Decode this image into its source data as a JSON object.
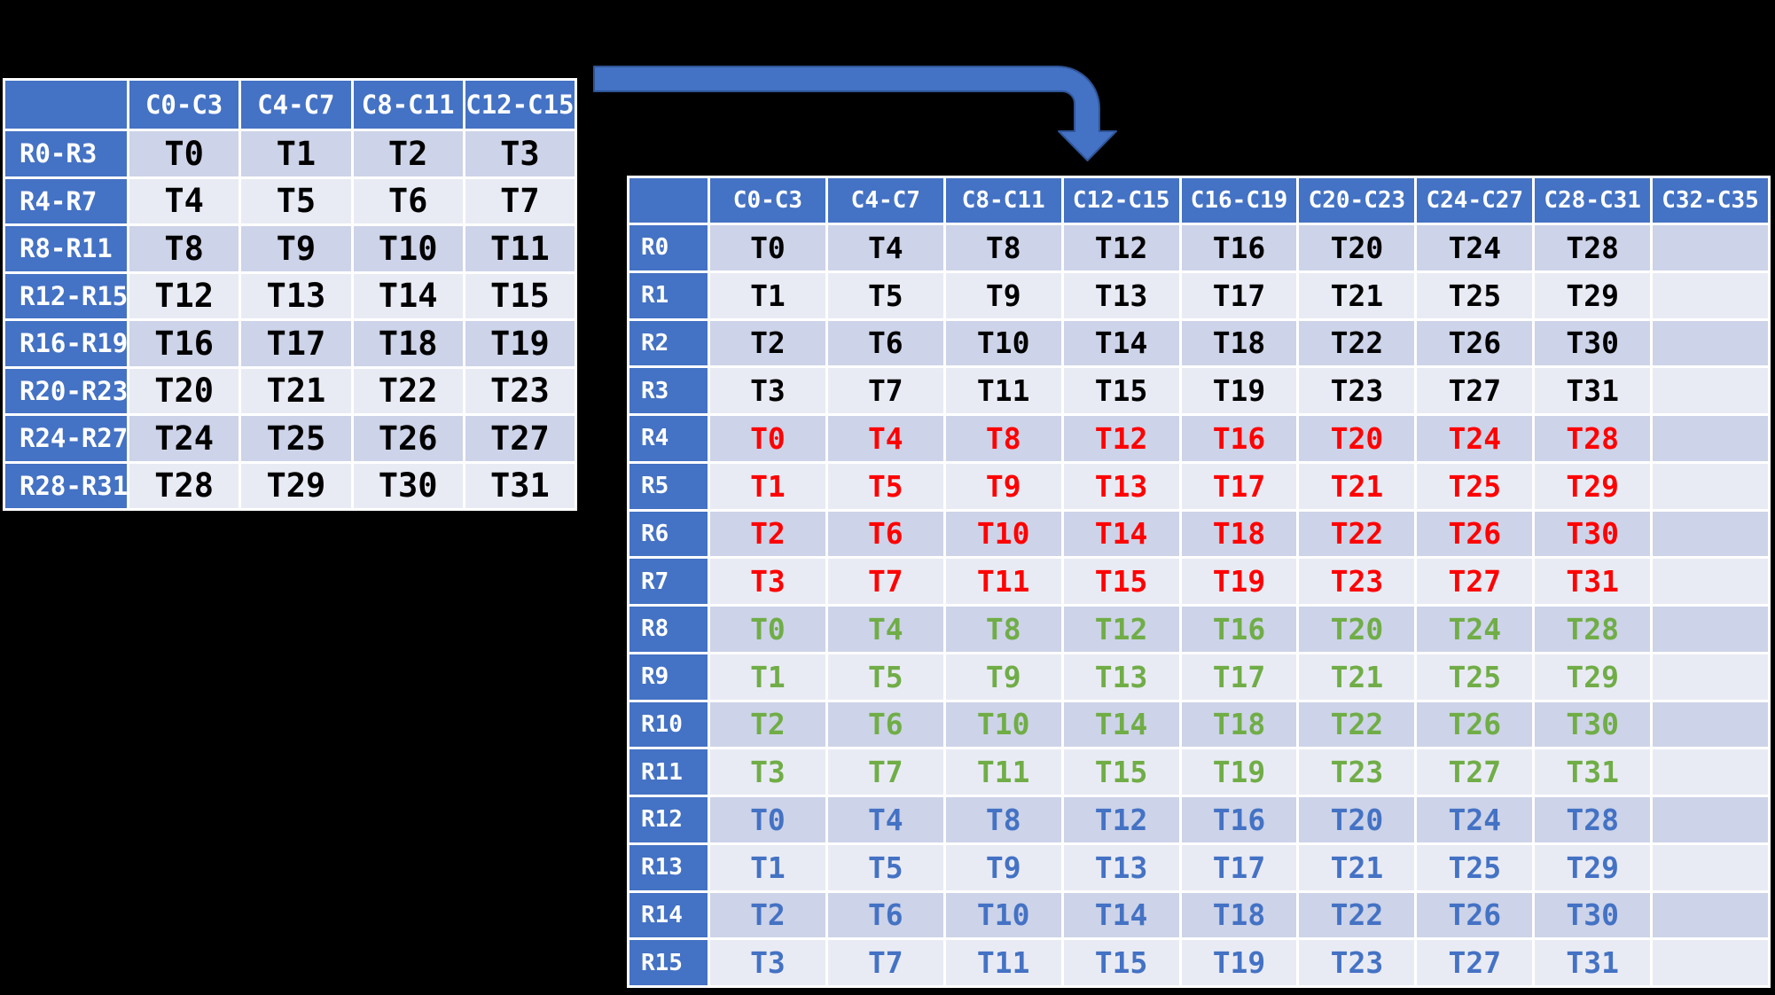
{
  "colors": {
    "header_bg": "#4472c4",
    "header_text": "#ffffff",
    "band_dark": "#cdd3e8",
    "band_light": "#e9ebf4",
    "grid": "#ffffff",
    "text_black": "#000000",
    "text_red": "#ff0000",
    "text_green": "#70ad47",
    "text_blue": "#4472c4",
    "arrow_fill": "#4472c4",
    "arrow_stroke": "#2f5496",
    "background": "#000000"
  },
  "left_table": {
    "columns": [
      "",
      "C0-C3",
      "C4-C7",
      "C8-C11",
      "C12-C15"
    ],
    "rows": [
      {
        "header": "R0-R3",
        "color": "black",
        "cells": [
          "T0",
          "T1",
          "T2",
          "T3"
        ]
      },
      {
        "header": "R4-R7",
        "color": "black",
        "cells": [
          "T4",
          "T5",
          "T6",
          "T7"
        ]
      },
      {
        "header": "R8-R11",
        "color": "black",
        "cells": [
          "T8",
          "T9",
          "T10",
          "T11"
        ]
      },
      {
        "header": "R12-R15",
        "color": "black",
        "cells": [
          "T12",
          "T13",
          "T14",
          "T15"
        ]
      },
      {
        "header": "R16-R19",
        "color": "black",
        "cells": [
          "T16",
          "T17",
          "T18",
          "T19"
        ]
      },
      {
        "header": "R20-R23",
        "color": "black",
        "cells": [
          "T20",
          "T21",
          "T22",
          "T23"
        ]
      },
      {
        "header": "R24-R27",
        "color": "black",
        "cells": [
          "T24",
          "T25",
          "T26",
          "T27"
        ]
      },
      {
        "header": "R28-R31",
        "color": "black",
        "cells": [
          "T28",
          "T29",
          "T30",
          "T31"
        ]
      }
    ]
  },
  "right_table": {
    "columns": [
      "",
      "C0-C3",
      "C4-C7",
      "C8-C11",
      "C12-C15",
      "C16-C19",
      "C20-C23",
      "C24-C27",
      "C28-C31",
      "C32-C35"
    ],
    "rows": [
      {
        "header": "R0",
        "color": "black",
        "cells": [
          "T0",
          "T4",
          "T8",
          "T12",
          "T16",
          "T20",
          "T24",
          "T28",
          ""
        ]
      },
      {
        "header": "R1",
        "color": "black",
        "cells": [
          "T1",
          "T5",
          "T9",
          "T13",
          "T17",
          "T21",
          "T25",
          "T29",
          ""
        ]
      },
      {
        "header": "R2",
        "color": "black",
        "cells": [
          "T2",
          "T6",
          "T10",
          "T14",
          "T18",
          "T22",
          "T26",
          "T30",
          ""
        ]
      },
      {
        "header": "R3",
        "color": "black",
        "cells": [
          "T3",
          "T7",
          "T11",
          "T15",
          "T19",
          "T23",
          "T27",
          "T31",
          ""
        ]
      },
      {
        "header": "R4",
        "color": "red",
        "cells": [
          "T0",
          "T4",
          "T8",
          "T12",
          "T16",
          "T20",
          "T24",
          "T28",
          ""
        ]
      },
      {
        "header": "R5",
        "color": "red",
        "cells": [
          "T1",
          "T5",
          "T9",
          "T13",
          "T17",
          "T21",
          "T25",
          "T29",
          ""
        ]
      },
      {
        "header": "R6",
        "color": "red",
        "cells": [
          "T2",
          "T6",
          "T10",
          "T14",
          "T18",
          "T22",
          "T26",
          "T30",
          ""
        ]
      },
      {
        "header": "R7",
        "color": "red",
        "cells": [
          "T3",
          "T7",
          "T11",
          "T15",
          "T19",
          "T23",
          "T27",
          "T31",
          ""
        ]
      },
      {
        "header": "R8",
        "color": "green",
        "cells": [
          "T0",
          "T4",
          "T8",
          "T12",
          "T16",
          "T20",
          "T24",
          "T28",
          ""
        ]
      },
      {
        "header": "R9",
        "color": "green",
        "cells": [
          "T1",
          "T5",
          "T9",
          "T13",
          "T17",
          "T21",
          "T25",
          "T29",
          ""
        ]
      },
      {
        "header": "R10",
        "color": "green",
        "cells": [
          "T2",
          "T6",
          "T10",
          "T14",
          "T18",
          "T22",
          "T26",
          "T30",
          ""
        ]
      },
      {
        "header": "R11",
        "color": "green",
        "cells": [
          "T3",
          "T7",
          "T11",
          "T15",
          "T19",
          "T23",
          "T27",
          "T31",
          ""
        ]
      },
      {
        "header": "R12",
        "color": "blue",
        "cells": [
          "T0",
          "T4",
          "T8",
          "T12",
          "T16",
          "T20",
          "T24",
          "T28",
          ""
        ]
      },
      {
        "header": "R13",
        "color": "blue",
        "cells": [
          "T1",
          "T5",
          "T9",
          "T13",
          "T17",
          "T21",
          "T25",
          "T29",
          ""
        ]
      },
      {
        "header": "R14",
        "color": "blue",
        "cells": [
          "T2",
          "T6",
          "T10",
          "T14",
          "T18",
          "T22",
          "T26",
          "T30",
          ""
        ]
      },
      {
        "header": "R15",
        "color": "blue",
        "cells": [
          "T3",
          "T7",
          "T11",
          "T15",
          "T19",
          "T23",
          "T27",
          "T31",
          ""
        ]
      }
    ]
  }
}
